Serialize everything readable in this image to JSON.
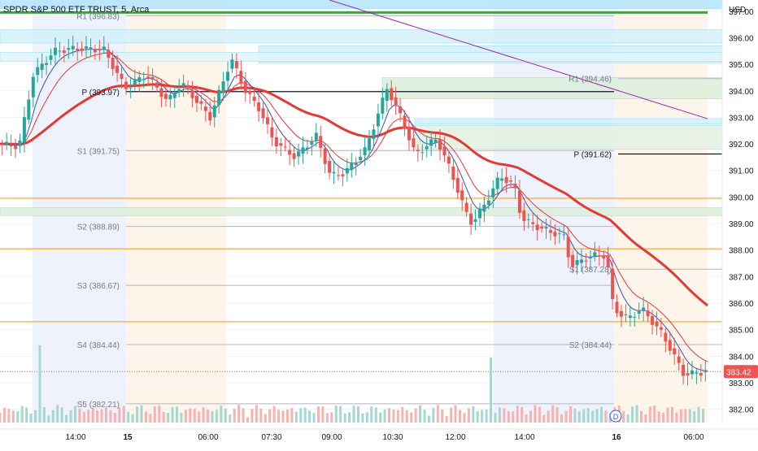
{
  "header": {
    "title": "SPDR S&P 500 ETF TRUST, 5, Arca"
  },
  "colors": {
    "up": "#26a69a",
    "down": "#ef5350",
    "sma_slow": "#e53935",
    "ema_fast": "#3f51b5",
    "ema_mid": "#e53935",
    "trend": "#9c27b0",
    "pivot": "#131722",
    "level": "#b2b5be",
    "orange": "#ff9800"
  },
  "chart_data": {
    "type": "candlestick",
    "title": "SPDR S&P 500 ETF TRUST, 5, Arca",
    "currency": "USD",
    "last_price": "383.42",
    "ylim": [
      381.5,
      397.3
    ],
    "y_ticks": [
      "397.00",
      "396.00",
      "395.00",
      "394.00",
      "393.00",
      "392.00",
      "391.00",
      "390.00",
      "389.00",
      "388.00",
      "387.00",
      "386.00",
      "385.00",
      "384.00",
      "383.00",
      "382.00"
    ],
    "x_ticks": [
      {
        "label": "14:00",
        "bold": false
      },
      {
        "label": "15",
        "bold": true
      },
      {
        "label": "06:00",
        "bold": false
      },
      {
        "label": "07:30",
        "bold": false
      },
      {
        "label": "09:00",
        "bold": false
      },
      {
        "label": "10:30",
        "bold": false
      },
      {
        "label": "12:00",
        "bold": false
      },
      {
        "label": "14:00",
        "bold": false
      },
      {
        "label": "16",
        "bold": true
      },
      {
        "label": "06:00",
        "bold": false
      }
    ],
    "pivot_levels": [
      {
        "label": "R1 (396.83)",
        "value": 396.83,
        "bold": false
      },
      {
        "label": "P (393.97)",
        "value": 393.97,
        "bold": true
      },
      {
        "label": "S1 (391.75)",
        "value": 391.75,
        "bold": false
      },
      {
        "label": "S2 (388.89)",
        "value": 388.89,
        "bold": false
      },
      {
        "label": "S3 (386.67)",
        "value": 386.67,
        "bold": false
      },
      {
        "label": "S4 (384.44)",
        "value": 384.44,
        "bold": false
      },
      {
        "label": "S5 (382.21)",
        "value": 382.21,
        "bold": false
      },
      {
        "label": "R1 (394.46)",
        "value": 394.46,
        "bold": false
      },
      {
        "label": "P (391.62)",
        "value": 391.62,
        "bold": true
      },
      {
        "label": "S1 (387.28)",
        "value": 387.28,
        "bold": false
      },
      {
        "label": "S2 (384.44)",
        "value": 384.44,
        "bold": false
      }
    ],
    "horizontal_levels": [
      389.95,
      388.05,
      385.3
    ],
    "session_marker": "D",
    "price_path": [
      {
        "t": 0,
        "p": 392.0
      },
      {
        "t": 0.03,
        "p": 391.9
      },
      {
        "t": 0.05,
        "p": 394.6
      },
      {
        "t": 0.08,
        "p": 395.5
      },
      {
        "t": 0.11,
        "p": 395.6
      },
      {
        "t": 0.15,
        "p": 395.55
      },
      {
        "t": 0.18,
        "p": 394.1
      },
      {
        "t": 0.21,
        "p": 394.6
      },
      {
        "t": 0.24,
        "p": 393.6
      },
      {
        "t": 0.26,
        "p": 394.3
      },
      {
        "t": 0.3,
        "p": 393.0
      },
      {
        "t": 0.33,
        "p": 395.2
      },
      {
        "t": 0.35,
        "p": 394.0
      },
      {
        "t": 0.37,
        "p": 393.3
      },
      {
        "t": 0.39,
        "p": 392.1
      },
      {
        "t": 0.42,
        "p": 391.5
      },
      {
        "t": 0.45,
        "p": 392.3
      },
      {
        "t": 0.47,
        "p": 390.8
      },
      {
        "t": 0.49,
        "p": 390.9
      },
      {
        "t": 0.52,
        "p": 391.8
      },
      {
        "t": 0.55,
        "p": 394.1
      },
      {
        "t": 0.57,
        "p": 393.0
      },
      {
        "t": 0.59,
        "p": 391.6
      },
      {
        "t": 0.62,
        "p": 392.2
      },
      {
        "t": 0.64,
        "p": 391.0
      },
      {
        "t": 0.66,
        "p": 389.5
      },
      {
        "t": 0.67,
        "p": 389.0
      },
      {
        "t": 0.69,
        "p": 389.8
      },
      {
        "t": 0.71,
        "p": 390.8
      },
      {
        "t": 0.73,
        "p": 390.4
      },
      {
        "t": 0.74,
        "p": 389.2
      },
      {
        "t": 0.76,
        "p": 388.9
      },
      {
        "t": 0.78,
        "p": 388.7
      },
      {
        "t": 0.8,
        "p": 388.5
      },
      {
        "t": 0.81,
        "p": 387.4
      },
      {
        "t": 0.84,
        "p": 387.8
      },
      {
        "t": 0.86,
        "p": 387.8
      },
      {
        "t": 0.87,
        "p": 385.8
      },
      {
        "t": 0.89,
        "p": 385.4
      },
      {
        "t": 0.91,
        "p": 385.8
      },
      {
        "t": 0.94,
        "p": 384.8
      },
      {
        "t": 0.97,
        "p": 383.3
      },
      {
        "t": 1.0,
        "p": 383.42
      }
    ]
  }
}
